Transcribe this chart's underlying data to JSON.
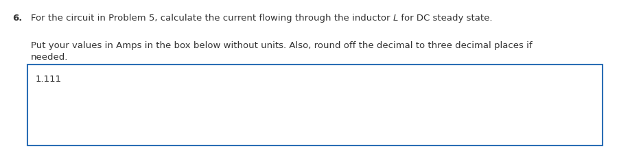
{
  "question_number": "6.",
  "q_part1": "For the circuit in Problem 5, calculate the current flowing through the inductor ",
  "q_italic": "L",
  "q_part2": " for DC steady state.",
  "instr1": "Put your values in Amps in the box below without units. Also, round off the decimal to three decimal places if",
  "instr2": "needed.",
  "answer": "1.111",
  "bg_color": "#ffffff",
  "text_color": "#333333",
  "box_color": "#2a6db5",
  "font_size": 9.5,
  "bold_size": 9.5
}
